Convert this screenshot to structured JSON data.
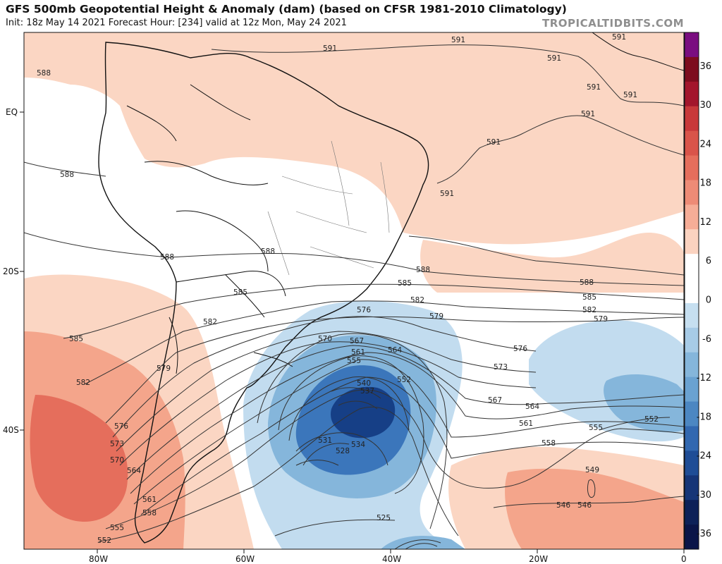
{
  "header": {
    "title": "GFS 500mb Geopotential Height & Anomaly (dam) (based on CFSR 1981-2010 Climatology)",
    "subtitle": "Init: 18z May 14 2021   Forecast Hour: [234]   valid at 12z Mon, May 24 2021",
    "credit": "TROPICALTIDBITS.COM"
  },
  "map": {
    "region": "South America and South Atlantic",
    "lon_range": [
      -90,
      0
    ],
    "lat_range": [
      -58,
      10
    ],
    "lat_labels": [
      "EQ",
      "20S",
      "40S"
    ],
    "lon_labels": [
      "80W",
      "60W",
      "40W",
      "20W",
      "0"
    ]
  },
  "colorbar": {
    "labels": [
      "36",
      "30",
      "24",
      "18",
      "12",
      "6",
      "0",
      "-6",
      "-12",
      "-18",
      "-24",
      "-30",
      "-36"
    ],
    "colors": [
      "#7a0d80",
      "#7d0c1e",
      "#a3152c",
      "#c8383a",
      "#d9544a",
      "#e56e5c",
      "#ee8b76",
      "#f6ad97",
      "#fbd3c0",
      "#ffffff",
      "#ffffff",
      "#c6dff0",
      "#a7cbe6",
      "#85b6db",
      "#6aa2d1",
      "#4c87c2",
      "#3268b0",
      "#1f4d96",
      "#163577",
      "#0d2158",
      "#0a1548"
    ]
  },
  "contours": {
    "labels": [
      "591",
      "591",
      "591",
      "591",
      "591",
      "591",
      "591",
      "591",
      "591",
      "588",
      "588",
      "588",
      "588",
      "588",
      "588",
      "585",
      "585",
      "585",
      "585",
      "582",
      "582",
      "582",
      "582",
      "579",
      "579",
      "579",
      "576",
      "576",
      "576",
      "573",
      "573",
      "570",
      "570",
      "567",
      "567",
      "564",
      "564",
      "564",
      "561",
      "561",
      "561",
      "558",
      "558",
      "555",
      "555",
      "555",
      "552",
      "552",
      "552",
      "549",
      "546",
      "546",
      "540",
      "537",
      "534",
      "531",
      "528",
      "525"
    ]
  },
  "colors": {
    "warm_light": "#fbd6c3",
    "warm_mid": "#f4a58b",
    "warm_strong": "#e56e5c",
    "warm_core": "#cf4a42",
    "cool_light": "#c2dcef",
    "cool_mid": "#85b6db",
    "cool_strong": "#3b76bb",
    "cool_core": "#163f86",
    "contour": "#333333"
  }
}
